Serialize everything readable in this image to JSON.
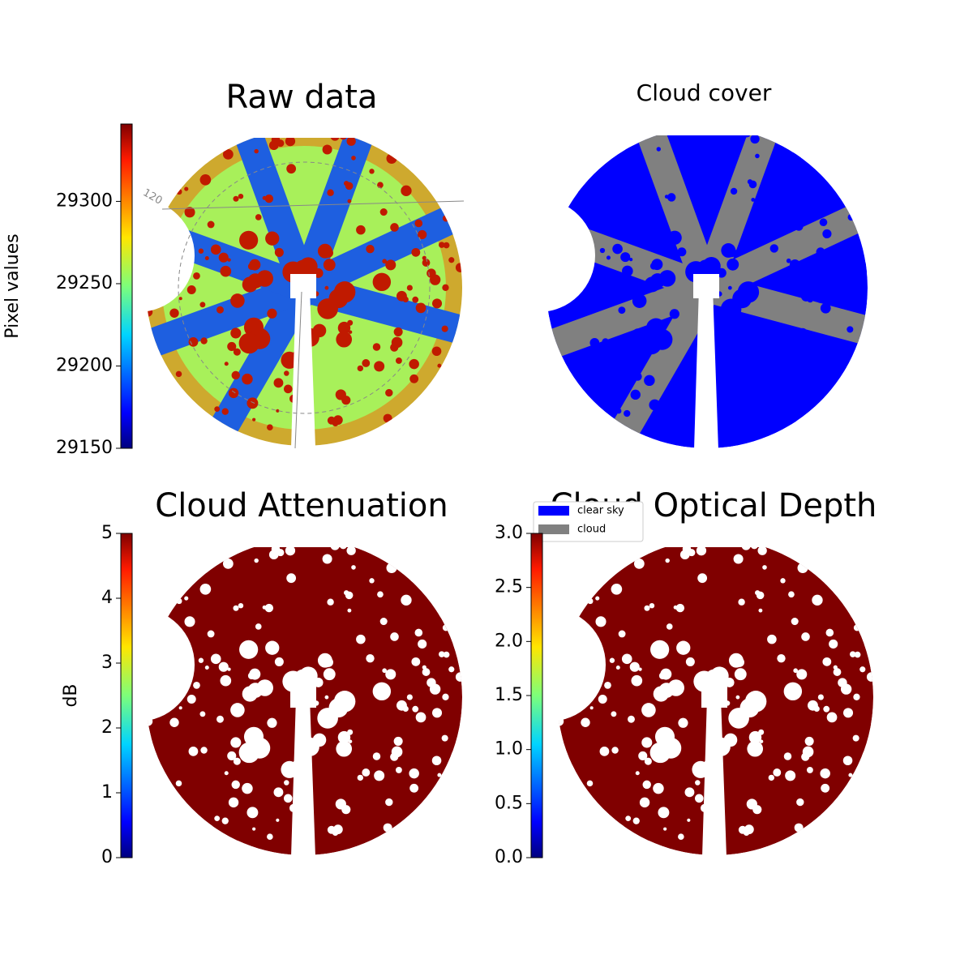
{
  "chart_data": [
    {
      "type": "image",
      "title": "Raw data",
      "colormap": "jet",
      "ylabel": "Pixel values",
      "ylim": [
        29150,
        29347
      ],
      "yticks": [
        29150,
        29200,
        29250,
        29300
      ],
      "annotations": [
        "120"
      ]
    },
    {
      "type": "image",
      "title": "Cloud cover",
      "series": [
        {
          "name": "clear sky",
          "color": "#0000ff"
        },
        {
          "name": "cloud",
          "color": "#808080"
        }
      ]
    },
    {
      "type": "image",
      "title": "Cloud Attenuation",
      "colormap": "jet",
      "ylabel": "dB",
      "ylim": [
        0,
        5
      ],
      "yticks": [
        0,
        1,
        2,
        3,
        4,
        5
      ]
    },
    {
      "type": "image",
      "title": "Cloud Optical Depth",
      "colormap": "jet",
      "ylim": [
        0,
        3
      ],
      "yticks": [
        {
          "value": 0,
          "label": "0.0"
        },
        0.5,
        {
          "value": 1,
          "label": "1.0"
        },
        1.5,
        {
          "value": 2,
          "label": "2.0"
        },
        2.5,
        {
          "value": 3,
          "label": "3.0"
        }
      ]
    }
  ]
}
